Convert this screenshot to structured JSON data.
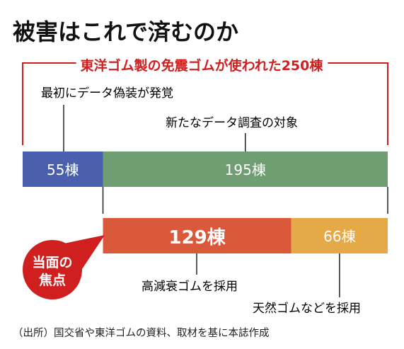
{
  "chart_data": {
    "type": "bar",
    "title": "被害はこれで済むのか",
    "total_label": "東洋ゴム製の免震ゴムが使われた250棟",
    "total": 250,
    "unit": "棟",
    "rows": [
      {
        "segments": [
          {
            "value": 55,
            "label": "55棟",
            "color": "#4a5fad",
            "caption": "最初にデータ偽装が発覚"
          },
          {
            "value": 195,
            "label": "195棟",
            "color": "#6e9e71",
            "caption": "新たなデータ調査の対象"
          }
        ]
      },
      {
        "segments": [
          {
            "value": 129,
            "label": "129棟",
            "color": "#d9593a",
            "caption": "高減衰ゴムを採用"
          },
          {
            "value": 66,
            "label": "66棟",
            "color": "#e5a948",
            "caption": "天然ゴムなどを採用"
          }
        ]
      }
    ],
    "callout": {
      "line1": "当面の",
      "line2": "焦点",
      "color": "#d01f1f"
    },
    "accent_color": "#d01f1f",
    "source": "（出所）国交省や東洋ゴムの資料、取材を基に本誌作成"
  }
}
